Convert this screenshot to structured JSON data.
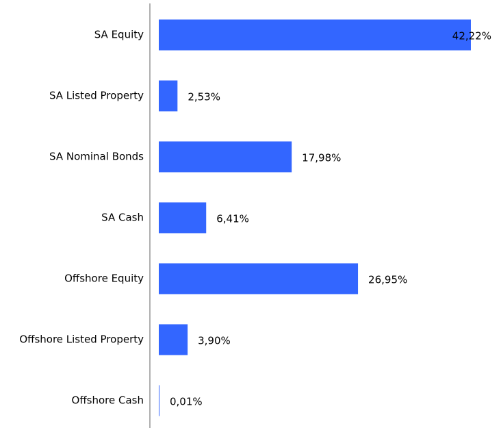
{
  "chart_data": {
    "type": "hbar",
    "categories": [
      "SA Equity",
      "SA Listed Property",
      "SA Nominal Bonds",
      "SA Cash",
      "Offshore Equity",
      "Offshore Listed Property",
      "Offshore Cash"
    ],
    "values": [
      42.22,
      2.53,
      17.98,
      6.41,
      26.95,
      3.9,
      0.01
    ],
    "value_labels": [
      "42,22%",
      "2,53%",
      "17,98%",
      "6,41%",
      "26,95%",
      "3,90%",
      "0,01%"
    ],
    "color": "#3366ff"
  }
}
